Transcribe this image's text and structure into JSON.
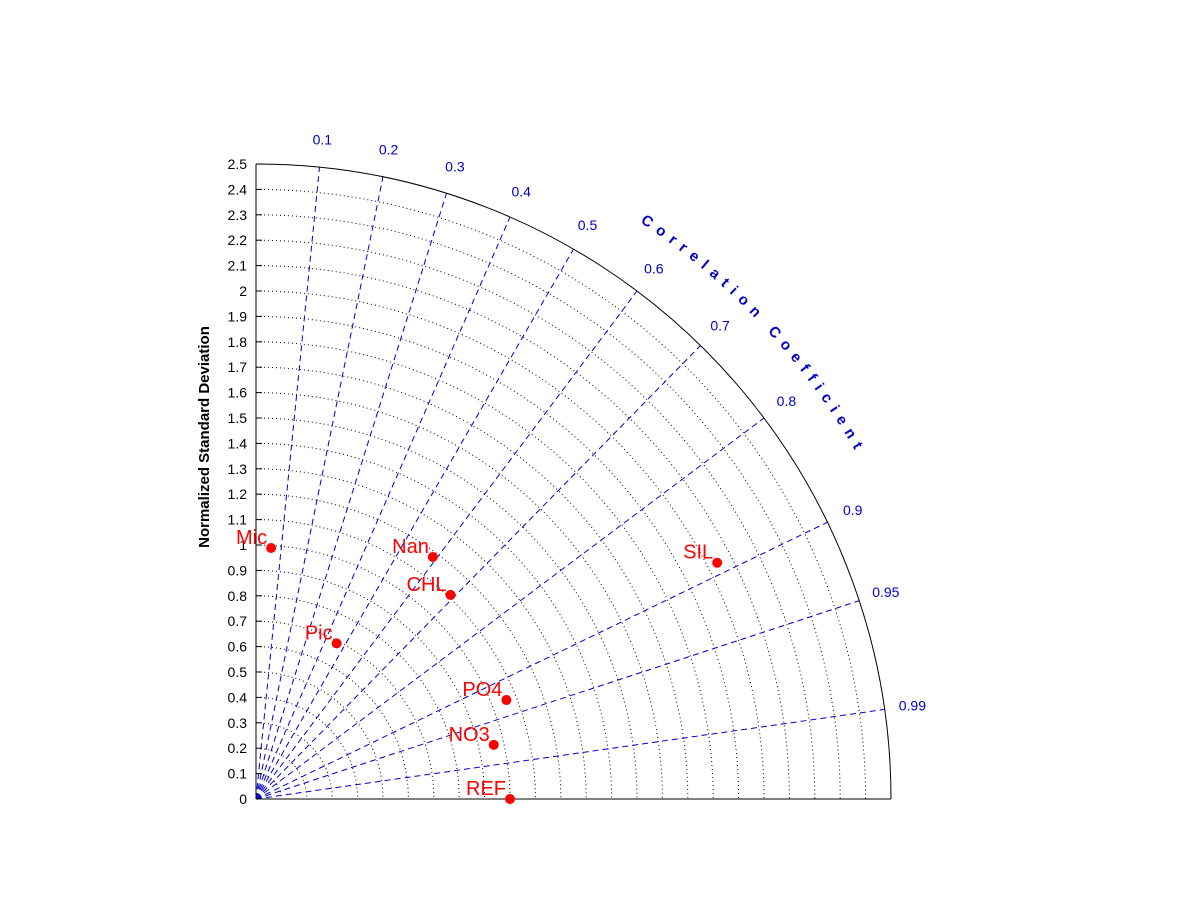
{
  "chart_data": {
    "type": "taylor_diagram",
    "ylabel": "Normalized Standard Deviation",
    "correlation_title": "Correlation Coefficient",
    "std_max": 2.5,
    "std_ticks": [
      "0",
      "0.1",
      "0.2",
      "0.3",
      "0.4",
      "0.5",
      "0.6",
      "0.7",
      "0.8",
      "0.9",
      "1",
      "1.1",
      "1.2",
      "1.3",
      "1.4",
      "1.5",
      "1.6",
      "1.7",
      "1.8",
      "1.9",
      "2",
      "2.1",
      "2.2",
      "2.3",
      "2.4",
      "2.5"
    ],
    "correlation_ticks": [
      {
        "value": 0.1,
        "label": "0.1"
      },
      {
        "value": 0.2,
        "label": "0.2"
      },
      {
        "value": 0.3,
        "label": "0.3"
      },
      {
        "value": 0.4,
        "label": "0.4"
      },
      {
        "value": 0.5,
        "label": "0.5"
      },
      {
        "value": 0.6,
        "label": "0.6"
      },
      {
        "value": 0.7,
        "label": "0.7"
      },
      {
        "value": 0.8,
        "label": "0.8"
      },
      {
        "value": 0.9,
        "label": "0.9"
      },
      {
        "value": 0.95,
        "label": "0.95"
      },
      {
        "value": 0.99,
        "label": "0.99"
      }
    ],
    "grid": true,
    "points": [
      {
        "name": "Mic",
        "std": 0.99,
        "corr": 0.06
      },
      {
        "name": "Nan",
        "std": 1.18,
        "corr": 0.59
      },
      {
        "name": "CHL",
        "std": 1.11,
        "corr": 0.69
      },
      {
        "name": "SIL",
        "std": 2.04,
        "corr": 0.89
      },
      {
        "name": "Pic",
        "std": 0.69,
        "corr": 0.46
      },
      {
        "name": "PO4",
        "std": 1.06,
        "corr": 0.93
      },
      {
        "name": "NO3",
        "std": 0.96,
        "corr": 0.975
      },
      {
        "name": "REF",
        "std": 1.0,
        "corr": 1.0
      }
    ],
    "colors": {
      "axes": "#000000",
      "grid": "#000000",
      "correlation": "#0000cc",
      "points": "#ff0000"
    }
  }
}
